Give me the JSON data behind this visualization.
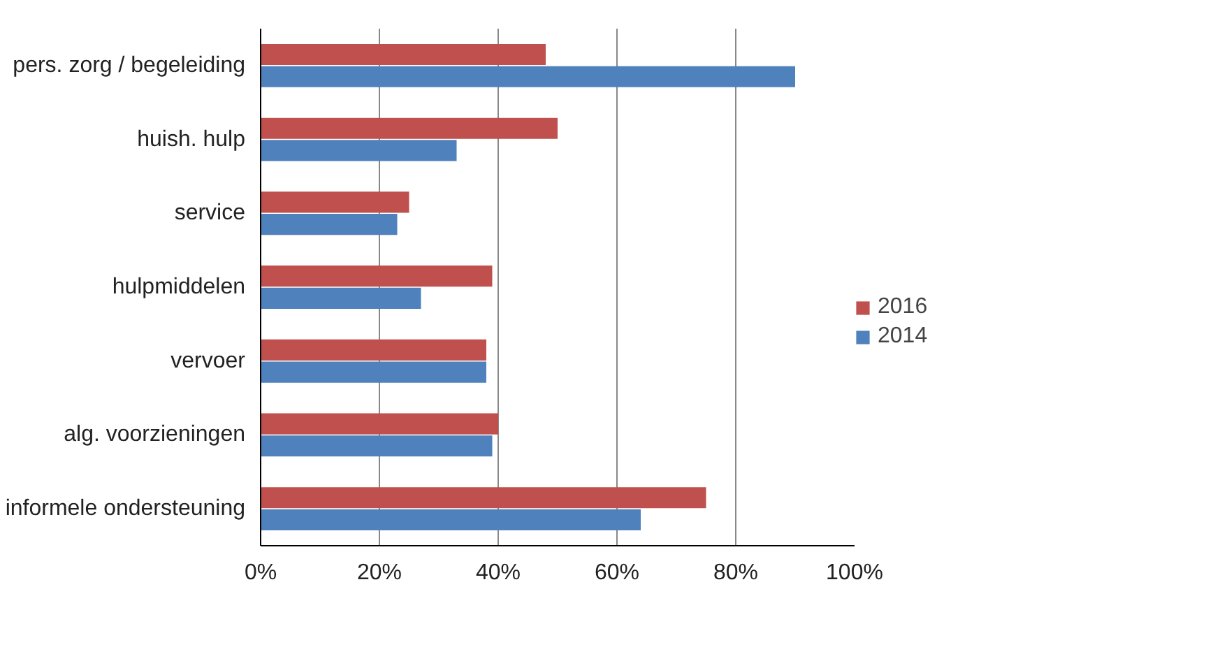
{
  "chart_data": {
    "type": "bar",
    "orientation": "horizontal",
    "categories": [
      "pers. zorg / begeleiding",
      "huish. hulp",
      "service",
      "hulpmiddelen",
      "vervoer",
      "alg. voorzieningen",
      "informele ondersteuning"
    ],
    "series": [
      {
        "name": "2016",
        "color": "#c0504d",
        "values": [
          48,
          50,
          25,
          39,
          38,
          40,
          75
        ]
      },
      {
        "name": "2014",
        "color": "#4f81bd",
        "values": [
          90,
          33,
          23,
          27,
          38,
          39,
          64
        ]
      }
    ],
    "xlim": [
      0,
      100
    ],
    "xticks": [
      {
        "value": 0,
        "label": "0%"
      },
      {
        "value": 20,
        "label": "20%"
      },
      {
        "value": 40,
        "label": "40%"
      },
      {
        "value": 60,
        "label": "60%"
      },
      {
        "value": 80,
        "label": "80%"
      },
      {
        "value": 100,
        "label": "100%"
      }
    ],
    "grid": "x",
    "legend": "right"
  }
}
